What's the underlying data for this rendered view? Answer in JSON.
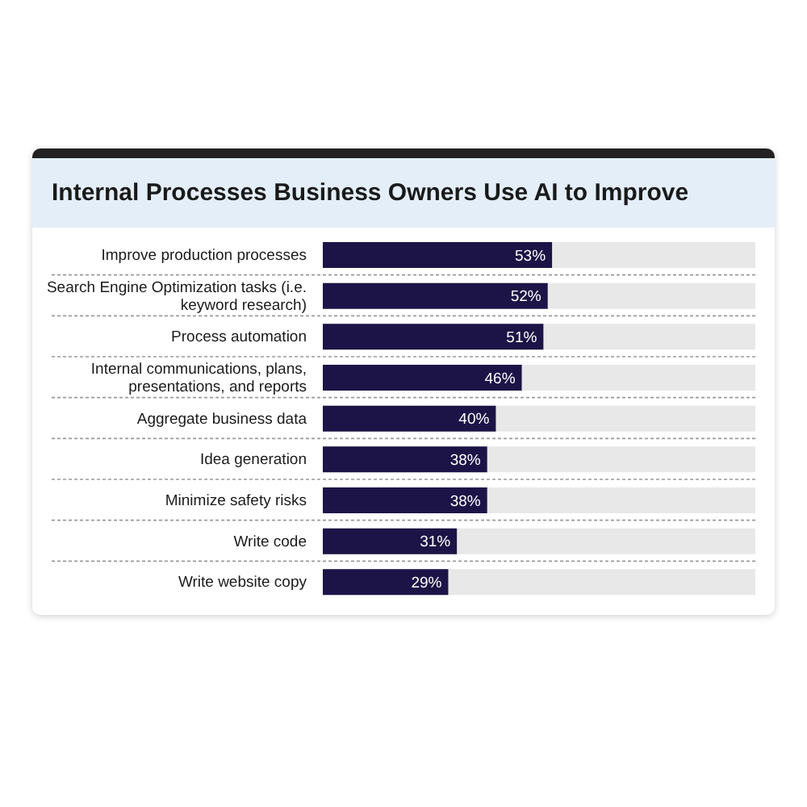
{
  "chart_data": {
    "type": "bar",
    "orientation": "horizontal",
    "title": "Internal Processes Business Owners Use AI to Improve",
    "categories": [
      "Improve production processes",
      "Search Engine Optimization tasks (i.e. keyword research)",
      "Process automation",
      "Internal communications, plans, presentations, and reports",
      "Aggregate business data",
      "Idea generation",
      "Minimize safety risks",
      "Write code",
      "Write website copy"
    ],
    "values": [
      53,
      52,
      51,
      46,
      40,
      38,
      38,
      31,
      29
    ],
    "value_labels": [
      "53%",
      "52%",
      "51%",
      "46%",
      "40%",
      "38%",
      "38%",
      "31%",
      "29%"
    ],
    "color": "#1c1446",
    "xlim": [
      0,
      100
    ],
    "tick_labels": "y",
    "grid": "y"
  }
}
